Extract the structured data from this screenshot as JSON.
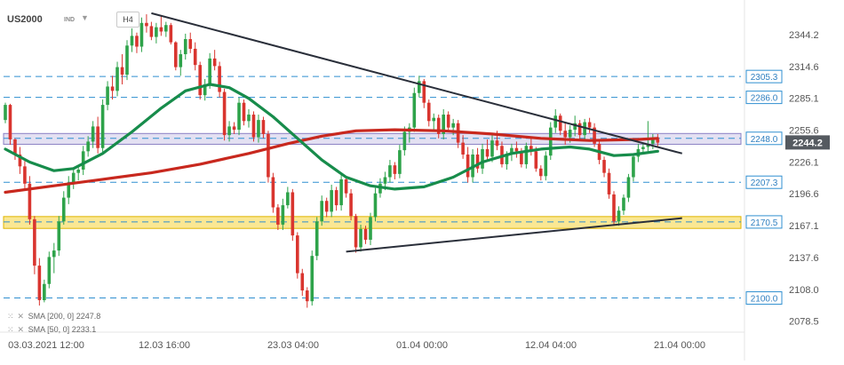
{
  "header": {
    "symbol": "US2000",
    "tag": "IND",
    "caret": "▼",
    "timeframe": "H4"
  },
  "indicators": [
    {
      "name": "SMA",
      "params": "[200, 0]",
      "value": "2247.8",
      "color": "#c8281e"
    },
    {
      "name": "SMA",
      "params": "[50, 0]",
      "value": "2233.1",
      "color": "#178c4b"
    }
  ],
  "chart_data": {
    "type": "candlestick",
    "y_range": [
      2070,
      2368
    ],
    "y_ticks": [
      "2344.2",
      "2314.6",
      "2285.1",
      "2255.6",
      "2226.1",
      "2196.6",
      "2167.1",
      "2137.6",
      "2108.0",
      "2078.5"
    ],
    "x_ticks": [
      "03.03.2021 12:00",
      "12.03 16:00",
      "23.03 04:00",
      "01.04 00:00",
      "12.04 04:00",
      "21.04 00:00"
    ],
    "current_price": "2244.2",
    "levels": [
      {
        "label": "2305.3",
        "value": 2305.3
      },
      {
        "label": "2286.0",
        "value": 2286.0
      },
      {
        "label": "2248.0",
        "value": 2248.0
      },
      {
        "label": "2207.3",
        "value": 2207.3
      },
      {
        "label": "2170.5",
        "value": 2170.5
      },
      {
        "label": "2100.0",
        "value": 2100.0
      }
    ],
    "zones": [
      {
        "name": "resistance",
        "from": 2242.5,
        "to": 2252.5,
        "color": "#9b8fd0"
      },
      {
        "name": "support",
        "from": 2164.5,
        "to": 2175.5,
        "color": "#f6d33a"
      }
    ],
    "candles": [
      [
        2265,
        2281,
        2262,
        2279
      ],
      [
        2279,
        2280,
        2242,
        2247
      ],
      [
        2247,
        2248,
        2228,
        2233
      ],
      [
        2233,
        2240,
        2215,
        2222
      ],
      [
        2222,
        2227,
        2200,
        2206
      ],
      [
        2206,
        2213,
        2168,
        2173
      ],
      [
        2173,
        2176,
        2122,
        2130
      ],
      [
        2130,
        2137,
        2093,
        2098
      ],
      [
        2098,
        2117,
        2096,
        2113
      ],
      [
        2113,
        2143,
        2109,
        2138
      ],
      [
        2138,
        2151,
        2123,
        2144
      ],
      [
        2144,
        2176,
        2139,
        2171
      ],
      [
        2171,
        2199,
        2168,
        2193
      ],
      [
        2193,
        2213,
        2187,
        2207
      ],
      [
        2207,
        2220,
        2201,
        2216
      ],
      [
        2216,
        2223,
        2209,
        2219
      ],
      [
        2219,
        2241,
        2214,
        2236
      ],
      [
        2236,
        2250,
        2231,
        2245
      ],
      [
        2245,
        2264,
        2239,
        2259
      ],
      [
        2259,
        2268,
        2234,
        2239
      ],
      [
        2239,
        2284,
        2235,
        2279
      ],
      [
        2279,
        2301,
        2274,
        2296
      ],
      [
        2296,
        2306,
        2284,
        2292
      ],
      [
        2292,
        2319,
        2287,
        2314
      ],
      [
        2314,
        2326,
        2298,
        2307
      ],
      [
        2307,
        2339,
        2302,
        2334
      ],
      [
        2334,
        2350,
        2328,
        2343
      ],
      [
        2343,
        2346,
        2327,
        2333
      ],
      [
        2333,
        2360,
        2328,
        2355
      ],
      [
        2355,
        2363,
        2346,
        2352
      ],
      [
        2352,
        2356,
        2339,
        2342
      ],
      [
        2342,
        2355,
        2336,
        2351
      ],
      [
        2351,
        2361,
        2343,
        2347
      ],
      [
        2347,
        2356,
        2342,
        2353
      ],
      [
        2353,
        2355,
        2335,
        2337
      ],
      [
        2337,
        2338,
        2311,
        2314
      ],
      [
        2314,
        2330,
        2306,
        2326
      ],
      [
        2326,
        2345,
        2321,
        2340
      ],
      [
        2340,
        2346,
        2327,
        2331
      ],
      [
        2331,
        2337,
        2311,
        2316
      ],
      [
        2316,
        2319,
        2284,
        2288
      ],
      [
        2288,
        2303,
        2283,
        2298
      ],
      [
        2298,
        2327,
        2294,
        2322
      ],
      [
        2322,
        2330,
        2311,
        2315
      ],
      [
        2315,
        2319,
        2286,
        2291
      ],
      [
        2291,
        2294,
        2246,
        2251
      ],
      [
        2251,
        2264,
        2245,
        2259
      ],
      [
        2259,
        2263,
        2252,
        2256
      ],
      [
        2256,
        2286,
        2251,
        2281
      ],
      [
        2281,
        2284,
        2260,
        2264
      ],
      [
        2264,
        2275,
        2258,
        2270
      ],
      [
        2270,
        2273,
        2245,
        2249
      ],
      [
        2249,
        2270,
        2244,
        2265
      ],
      [
        2265,
        2268,
        2248,
        2252
      ],
      [
        2252,
        2255,
        2207,
        2212
      ],
      [
        2212,
        2216,
        2179,
        2184
      ],
      [
        2184,
        2187,
        2163,
        2168
      ],
      [
        2168,
        2192,
        2163,
        2186
      ],
      [
        2186,
        2203,
        2183,
        2198
      ],
      [
        2198,
        2201,
        2153,
        2158
      ],
      [
        2158,
        2161,
        2118,
        2123
      ],
      [
        2123,
        2127,
        2102,
        2107
      ],
      [
        2107,
        2110,
        2091,
        2097
      ],
      [
        2097,
        2144,
        2093,
        2139
      ],
      [
        2139,
        2175,
        2135,
        2171
      ],
      [
        2171,
        2195,
        2167,
        2190
      ],
      [
        2190,
        2193,
        2175,
        2180
      ],
      [
        2180,
        2205,
        2175,
        2200
      ],
      [
        2200,
        2203,
        2181,
        2186
      ],
      [
        2186,
        2215,
        2181,
        2210
      ],
      [
        2210,
        2212,
        2193,
        2197
      ],
      [
        2197,
        2201,
        2172,
        2176
      ],
      [
        2176,
        2178,
        2142,
        2147
      ],
      [
        2147,
        2168,
        2143,
        2164
      ],
      [
        2164,
        2167,
        2150,
        2154
      ],
      [
        2154,
        2179,
        2149,
        2175
      ],
      [
        2175,
        2202,
        2171,
        2197
      ],
      [
        2197,
        2211,
        2193,
        2206
      ],
      [
        2206,
        2217,
        2200,
        2212
      ],
      [
        2212,
        2228,
        2207,
        2223
      ],
      [
        2223,
        2226,
        2210,
        2215
      ],
      [
        2215,
        2242,
        2211,
        2237
      ],
      [
        2237,
        2259,
        2232,
        2254
      ],
      [
        2254,
        2262,
        2244,
        2258
      ],
      [
        2258,
        2295,
        2254,
        2290
      ],
      [
        2290,
        2306,
        2286,
        2301
      ],
      [
        2301,
        2303,
        2276,
        2281
      ],
      [
        2281,
        2284,
        2259,
        2264
      ],
      [
        2264,
        2271,
        2256,
        2267
      ],
      [
        2267,
        2270,
        2248,
        2252
      ],
      [
        2252,
        2275,
        2247,
        2270
      ],
      [
        2270,
        2273,
        2254,
        2258
      ],
      [
        2258,
        2266,
        2251,
        2262
      ],
      [
        2262,
        2265,
        2239,
        2244
      ],
      [
        2244,
        2251,
        2229,
        2233
      ],
      [
        2233,
        2240,
        2207,
        2212
      ],
      [
        2212,
        2238,
        2207,
        2233
      ],
      [
        2233,
        2239,
        2216,
        2220
      ],
      [
        2220,
        2243,
        2215,
        2238
      ],
      [
        2238,
        2247,
        2227,
        2231
      ],
      [
        2231,
        2251,
        2226,
        2246
      ],
      [
        2246,
        2255,
        2237,
        2241
      ],
      [
        2241,
        2245,
        2221,
        2224
      ],
      [
        2224,
        2236,
        2219,
        2233
      ],
      [
        2233,
        2243,
        2227,
        2239
      ],
      [
        2239,
        2245,
        2230,
        2236
      ],
      [
        2236,
        2239,
        2221,
        2224
      ],
      [
        2224,
        2244,
        2220,
        2241
      ],
      [
        2241,
        2249,
        2232,
        2236
      ],
      [
        2236,
        2240,
        2217,
        2220
      ],
      [
        2220,
        2223,
        2209,
        2213
      ],
      [
        2213,
        2236,
        2209,
        2232
      ],
      [
        2232,
        2263,
        2228,
        2258
      ],
      [
        2258,
        2275,
        2253,
        2269
      ],
      [
        2269,
        2271,
        2251,
        2255
      ],
      [
        2255,
        2263,
        2242,
        2249
      ],
      [
        2249,
        2260,
        2244,
        2256
      ],
      [
        2256,
        2269,
        2250,
        2262
      ],
      [
        2262,
        2265,
        2246,
        2251
      ],
      [
        2251,
        2266,
        2247,
        2263
      ],
      [
        2263,
        2267,
        2253,
        2258
      ],
      [
        2258,
        2262,
        2240,
        2243
      ],
      [
        2243,
        2247,
        2224,
        2228
      ],
      [
        2228,
        2231,
        2212,
        2216
      ],
      [
        2216,
        2220,
        2192,
        2196
      ],
      [
        2196,
        2199,
        2167,
        2171
      ],
      [
        2171,
        2185,
        2167,
        2181
      ],
      [
        2181,
        2196,
        2177,
        2193
      ],
      [
        2193,
        2215,
        2189,
        2212
      ],
      [
        2212,
        2234,
        2208,
        2231
      ],
      [
        2231,
        2243,
        2226,
        2238
      ],
      [
        2238,
        2244,
        2233,
        2240
      ],
      [
        2240,
        2264,
        2236,
        2243
      ],
      [
        2243,
        2252,
        2238,
        2247
      ],
      [
        2247,
        2252,
        2240,
        2244
      ]
    ],
    "sma200": [
      [
        0,
        2198
      ],
      [
        10,
        2204
      ],
      [
        20,
        2210
      ],
      [
        30,
        2216
      ],
      [
        40,
        2224
      ],
      [
        50,
        2234
      ],
      [
        58,
        2243
      ],
      [
        65,
        2250
      ],
      [
        72,
        2255
      ],
      [
        80,
        2256
      ],
      [
        90,
        2255
      ],
      [
        100,
        2252
      ],
      [
        110,
        2248
      ],
      [
        120,
        2246
      ],
      [
        130,
        2247
      ],
      [
        134,
        2248
      ]
    ],
    "sma50": [
      [
        0,
        2238
      ],
      [
        5,
        2226
      ],
      [
        10,
        2218
      ],
      [
        14,
        2220
      ],
      [
        20,
        2234
      ],
      [
        26,
        2254
      ],
      [
        32,
        2276
      ],
      [
        37,
        2292
      ],
      [
        42,
        2298
      ],
      [
        46,
        2295
      ],
      [
        50,
        2285
      ],
      [
        55,
        2268
      ],
      [
        60,
        2248
      ],
      [
        65,
        2228
      ],
      [
        70,
        2212
      ],
      [
        75,
        2204
      ],
      [
        80,
        2201
      ],
      [
        86,
        2203
      ],
      [
        92,
        2212
      ],
      [
        98,
        2226
      ],
      [
        104,
        2234
      ],
      [
        110,
        2238
      ],
      [
        116,
        2240
      ],
      [
        120,
        2238
      ],
      [
        125,
        2232
      ],
      [
        129,
        2233
      ],
      [
        134,
        2236
      ]
    ],
    "trendlines": [
      {
        "name": "resistance-trendline",
        "from": [
          30,
          2364
        ],
        "to": [
          139,
          2234
        ]
      },
      {
        "name": "support-trendline",
        "from": [
          70,
          2143
        ],
        "to": [
          139,
          2174
        ]
      }
    ]
  }
}
